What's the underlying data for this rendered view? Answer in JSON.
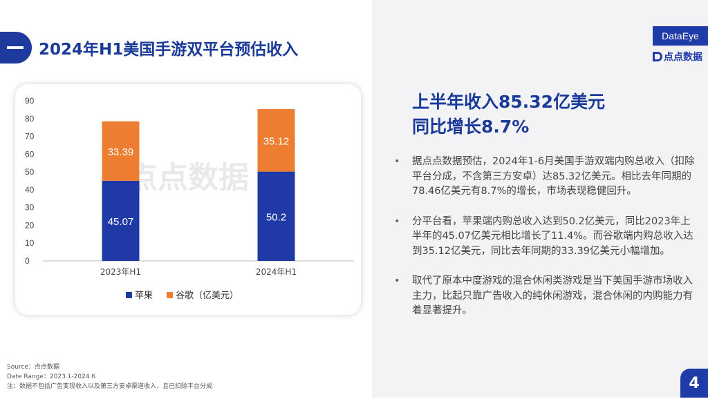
{
  "header": {
    "title": "2024年H1美国手游双平台预估收入"
  },
  "brand": {
    "box_label": "DataEye",
    "sub_label": "点点数据"
  },
  "headline": {
    "line1": "上半年收入85.32亿美元",
    "line2": "同比增长8.7%"
  },
  "bullets": [
    "据点点数据预估，2024年1-6月美国手游双端内购总收入（扣除平台分成，不含第三方安卓）达85.32亿美元。相比去年同期的78.46亿美元有8.7%的增长，市场表现稳健回升。",
    "分平台看，苹果端内购总收入达到50.2亿美元，同比2023年上半年的45.07亿美元相比增长了11.4%。而谷歌端内购总收入达到35.12亿美元，同比去年同期的33.39亿美元小幅增加。",
    "取代了原本中度游戏的混合休闲类游戏是当下美国手游市场收入主力，比起只靠广告收入的纯休闲游戏，混合休闲的内购能力有着显著提升。"
  ],
  "bullet_symbol": "•",
  "footnote": {
    "source": "Source：点点数据",
    "date_range": "Date Range：2023.1-2024.6",
    "note": "注：数据不包括广告变现收入以及第三方安卓渠道收入，且已扣除平台分成"
  },
  "page_number": "4",
  "colors": {
    "apple": "#1f3aa6",
    "google": "#ed7d31",
    "brand": "#1f3ba8"
  },
  "chart_data": {
    "type": "bar",
    "stacked": true,
    "categories": [
      "2023年H1",
      "2024年H1"
    ],
    "series": [
      {
        "name": "苹果",
        "values": [
          45.07,
          50.2
        ],
        "labels": [
          "45.07",
          "50.2"
        ]
      },
      {
        "name": "谷歌（亿美元）",
        "values": [
          33.39,
          35.12
        ],
        "labels": [
          "33.39",
          "35.12"
        ]
      }
    ],
    "ylim": [
      0,
      90
    ],
    "yticks": [
      "0",
      "10",
      "20",
      "30",
      "40",
      "50",
      "60",
      "70",
      "80",
      "90"
    ],
    "legend": "bottom",
    "grid": false,
    "watermark": "点点数据"
  }
}
